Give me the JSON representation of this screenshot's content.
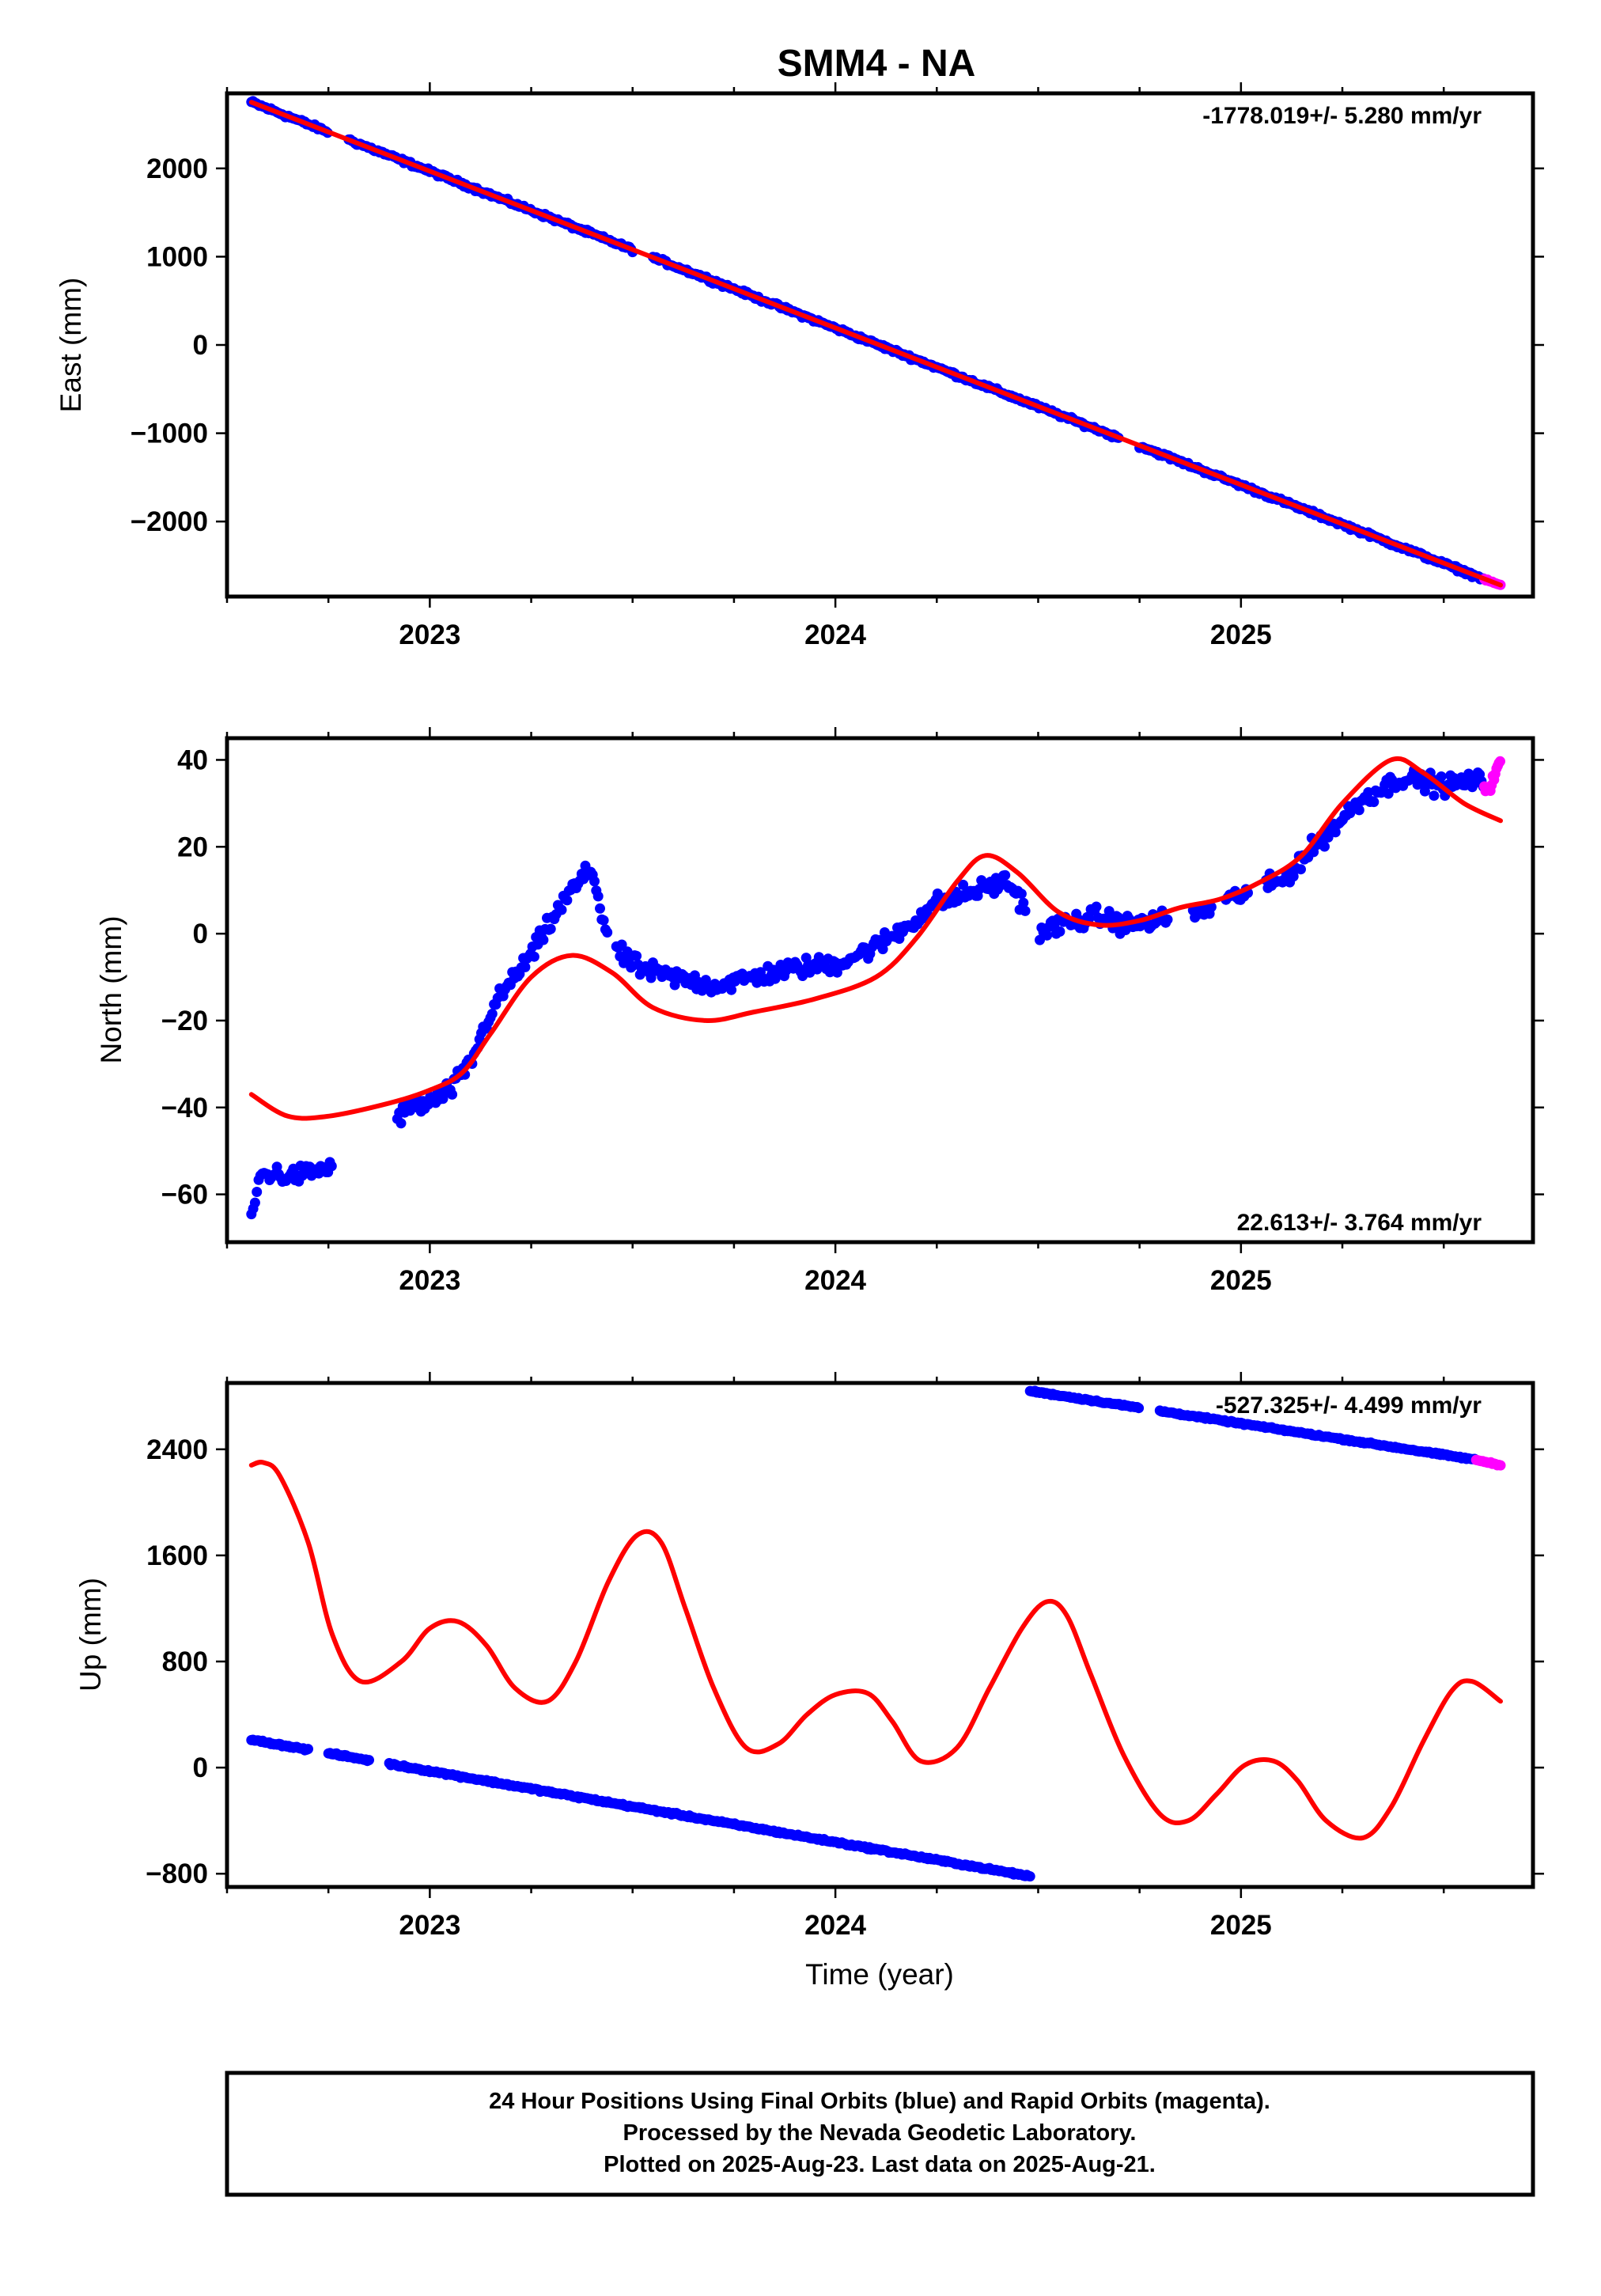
{
  "title": "SMM4 - NA",
  "colors": {
    "final_orbits": "#0000ff",
    "rapid_orbits": "#ff00ff",
    "model": "#ff0000",
    "frame": "#000000"
  },
  "chart_data": [
    {
      "type": "scatter",
      "ylabel": "East (mm)",
      "xlim": [
        2022.5,
        2025.72
      ],
      "ylim": [
        -2850,
        2850
      ],
      "x_ticks": [
        "2023",
        "2024",
        "2025"
      ],
      "y_ticks": [
        "2000",
        "1000",
        "0",
        "−1000",
        "−2000"
      ],
      "y_tick_values": [
        2000,
        1000,
        0,
        -1000,
        -2000
      ],
      "rate_label": "-1778.019+/- 5.280 mm/yr",
      "rate_position": "top-right",
      "series": [
        {
          "kind": "final_orbits",
          "description": "linear trend",
          "x_range": [
            2022.56,
            2025.6
          ],
          "y_range": [
            2750,
            -2655
          ],
          "segments": [
            [
              2022.56,
              2022.75
            ],
            [
              2022.8,
              2023.5
            ],
            [
              2023.55,
              2024.7
            ],
            [
              2024.75,
              2025.6
            ]
          ]
        },
        {
          "kind": "rapid_orbits",
          "x_range": [
            2025.6,
            2025.64
          ],
          "y_range": [
            -2655,
            -2720
          ]
        },
        {
          "kind": "model",
          "x": [
            2022.56,
            2025.64
          ],
          "y": [
            2750,
            -2720
          ]
        }
      ]
    },
    {
      "type": "scatter",
      "ylabel": "North (mm)",
      "xlim": [
        2022.5,
        2025.72
      ],
      "ylim": [
        -71,
        45
      ],
      "x_ticks": [
        "2023",
        "2024",
        "2025"
      ],
      "y_ticks": [
        "40",
        "20",
        "0",
        "−20",
        "−40",
        "−60"
      ],
      "y_tick_values": [
        40,
        20,
        0,
        -20,
        -40,
        -60
      ],
      "rate_label": "22.613+/- 3.764 mm/yr",
      "rate_position": "bottom-right",
      "series": [
        {
          "kind": "final_orbits",
          "x": [
            2022.56,
            2022.58,
            2022.6,
            2022.65,
            2022.7,
            2022.75,
            2022.8,
            2022.9,
            2022.95,
            2023.0,
            2023.05,
            2023.1,
            2023.15,
            2023.2,
            2023.25,
            2023.3,
            2023.35,
            2023.4,
            2023.43,
            2023.47,
            2023.52,
            2023.55,
            2023.6,
            2023.7,
            2023.8,
            2023.9,
            2024.0,
            2024.1,
            2024.18,
            2024.25,
            2024.35,
            2024.42,
            2024.45,
            2024.5,
            2024.55,
            2024.6,
            2024.65,
            2024.72,
            2024.8,
            2024.9,
            2025.0,
            2025.1,
            2025.15,
            2025.2,
            2025.3,
            2025.4,
            2025.5,
            2025.55,
            2025.6
          ],
          "y": [
            -66,
            -56,
            -55,
            -56,
            -55,
            -54,
            -52,
            -44,
            -40,
            -39,
            -36,
            -30,
            -18,
            -11,
            -5,
            3,
            10,
            15,
            2,
            -5,
            -8,
            -9,
            -10,
            -12,
            -10,
            -8,
            -7,
            -3,
            2,
            7,
            10,
            12,
            9,
            0,
            2,
            3,
            4,
            2,
            3,
            5,
            9,
            12,
            17,
            22,
            31,
            36,
            34,
            35,
            35
          ],
          "spread": 3.2
        },
        {
          "kind": "rapid_orbits",
          "x": [
            2025.6,
            2025.61,
            2025.62,
            2025.63,
            2025.64
          ],
          "y": [
            34,
            33,
            35,
            38,
            39
          ]
        },
        {
          "kind": "model",
          "x": [
            2022.56,
            2022.65,
            2022.75,
            2022.9,
            2023.0,
            2023.08,
            2023.15,
            2023.25,
            2023.35,
            2023.45,
            2023.55,
            2023.68,
            2023.8,
            2023.95,
            2024.1,
            2024.2,
            2024.3,
            2024.37,
            2024.45,
            2024.55,
            2024.65,
            2024.75,
            2024.85,
            2024.95,
            2025.05,
            2025.15,
            2025.25,
            2025.37,
            2025.45,
            2025.55,
            2025.64
          ],
          "y": [
            -37,
            -42,
            -42,
            -39,
            -36,
            -32,
            -23,
            -10,
            -5,
            -9,
            -17,
            -20,
            -18,
            -15,
            -10,
            -1,
            12,
            18,
            14,
            5,
            2,
            3,
            6,
            8,
            12,
            18,
            30,
            40,
            37,
            30,
            26
          ]
        }
      ]
    },
    {
      "type": "scatter",
      "ylabel": "Up (mm)",
      "xlabel": "Time (year)",
      "xlim": [
        2022.5,
        2025.72
      ],
      "ylim": [
        -900,
        2900
      ],
      "x_ticks": [
        "2023",
        "2024",
        "2025"
      ],
      "y_ticks": [
        "2400",
        "1600",
        "800",
        "0",
        "−800"
      ],
      "y_tick_values": [
        2400,
        1600,
        800,
        0,
        -800
      ],
      "rate_label": "-527.325+/- 4.499 mm/yr",
      "rate_position": "top-right",
      "series": [
        {
          "kind": "final_orbits",
          "description": "segment before offset",
          "x_range": [
            2022.56,
            2024.48
          ],
          "y_range": [
            210,
            -820
          ],
          "segments": [
            [
              2022.56,
              2022.7
            ],
            [
              2022.75,
              2022.85
            ],
            [
              2022.9,
              2024.48
            ]
          ]
        },
        {
          "kind": "final_orbits",
          "description": "segment after offset",
          "x_range": [
            2024.48,
            2025.58
          ],
          "y_range": [
            2840,
            2320
          ],
          "segments": [
            [
              2024.48,
              2024.75
            ],
            [
              2024.8,
              2025.58
            ]
          ]
        },
        {
          "kind": "rapid_orbits",
          "x_range": [
            2025.58,
            2025.64
          ],
          "y_range": [
            2320,
            2280
          ]
        },
        {
          "kind": "model",
          "x": [
            2022.56,
            2022.59,
            2022.63,
            2022.7,
            2022.76,
            2022.83,
            2022.93,
            2023.0,
            2023.07,
            2023.14,
            2023.21,
            2023.29,
            2023.36,
            2023.44,
            2023.51,
            2023.57,
            2023.63,
            2023.7,
            2023.78,
            2023.86,
            2023.93,
            2024.0,
            2024.08,
            2024.14,
            2024.21,
            2024.3,
            2024.38,
            2024.46,
            2024.52,
            2024.57,
            2024.63,
            2024.71,
            2024.8,
            2024.87,
            2024.94,
            2025.01,
            2025.08,
            2025.14,
            2025.21,
            2025.3,
            2025.37,
            2025.45,
            2025.52,
            2025.57,
            2025.64
          ],
          "y": [
            2280,
            2300,
            2200,
            1700,
            1000,
            650,
            800,
            1050,
            1100,
            920,
            600,
            500,
            800,
            1400,
            1750,
            1700,
            1200,
            600,
            150,
            180,
            400,
            550,
            560,
            350,
            50,
            150,
            600,
            1050,
            1250,
            1150,
            700,
            100,
            -350,
            -400,
            -200,
            20,
            50,
            -100,
            -400,
            -530,
            -300,
            200,
            580,
            650,
            500
          ]
        }
      ]
    }
  ],
  "footer": {
    "line1": "24 Hour Positions Using Final Orbits (blue) and Rapid Orbits (magenta).",
    "line2": "Processed by the Nevada Geodetic Laboratory.",
    "line3": "Plotted on 2025-Aug-23. Last data on 2025-Aug-21."
  }
}
